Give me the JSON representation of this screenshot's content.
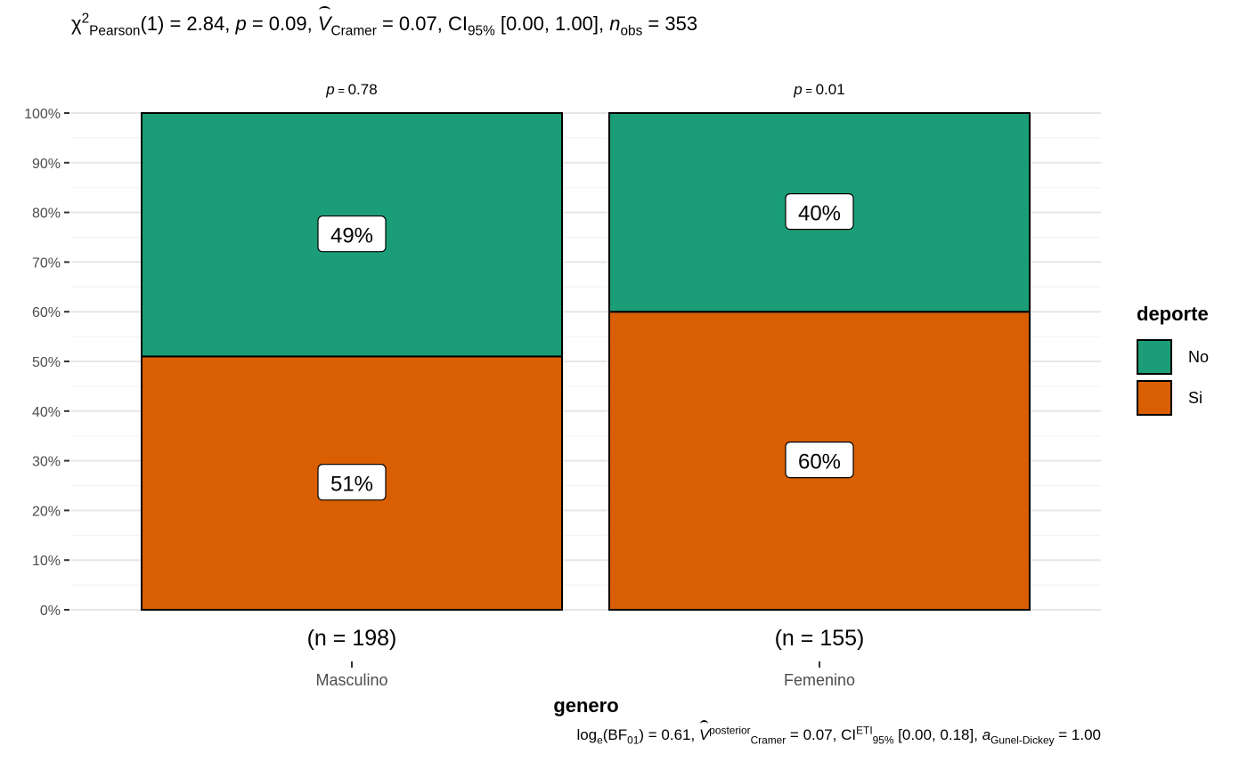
{
  "subtitle": {
    "chi": "χ",
    "chi_sup": "2",
    "chi_sub": "Pearson",
    "df_stat": "(1) = 2.84, ",
    "p_label": "p",
    "p_val": " = 0.09, ",
    "v_label": "V",
    "v_sub": "Cramer",
    "v_val": " = 0.07, CI",
    "ci_sub": "95%",
    "ci_val": " [0.00, 1.00], ",
    "n_label": "n",
    "n_sub": "obs",
    "n_val": " = 353"
  },
  "caption": {
    "log": "log",
    "log_sub": "e",
    "bf": "(BF",
    "bf_sub": "01",
    "bf_val": ") = 0.61, ",
    "v_label": "V",
    "v_sup": "posterior",
    "v_sub": "Cramer",
    "v_val": " = 0.07, CI",
    "ci_sup": "ETI",
    "ci_sub": "95%",
    "ci_val": " [0.00, 0.18], ",
    "a_label": "a",
    "a_sub": "Gunel-Dickey",
    "a_val": " = 1.00"
  },
  "legend": {
    "title": "deporte",
    "items": [
      {
        "label": "No",
        "color": "#1b9e77"
      },
      {
        "label": "Si",
        "color": "#d95f02"
      }
    ]
  },
  "chart_data": {
    "type": "bar",
    "stacked": true,
    "xlabel": "genero",
    "ylabel": "",
    "ylim": [
      0,
      100
    ],
    "yticks": [
      "0%",
      "10%",
      "20%",
      "30%",
      "40%",
      "50%",
      "60%",
      "70%",
      "80%",
      "90%",
      "100%"
    ],
    "categories": [
      "Masculino",
      "Femenino"
    ],
    "counts": [
      "(n = 198)",
      "(n = 155)"
    ],
    "pvalues": [
      "0.78",
      "0.01"
    ],
    "series": [
      {
        "name": "Si",
        "color": "#d95f02",
        "values": [
          51,
          60
        ],
        "labels": [
          "51%",
          "60%"
        ]
      },
      {
        "name": "No",
        "color": "#1b9e77",
        "values": [
          49,
          40
        ],
        "labels": [
          "49%",
          "40%"
        ]
      }
    ],
    "grid": true,
    "legend_position": "right"
  }
}
